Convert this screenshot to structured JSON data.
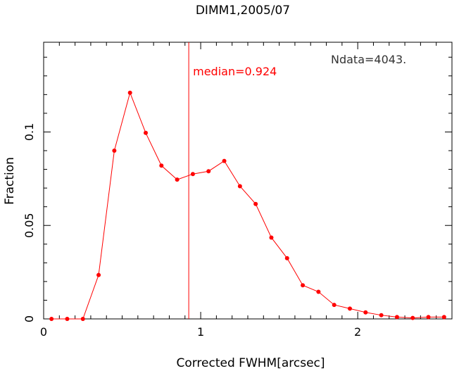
{
  "chart_data": {
    "type": "line",
    "title": "DIMM1,2005/07",
    "xlabel": "Corrected FWHM[arcsec]",
    "ylabel": "Fraction",
    "xlim": [
      0,
      2.6
    ],
    "ylim": [
      0,
      0.148
    ],
    "xticks": [
      {
        "value": 0,
        "label": "0"
      },
      {
        "value": 1,
        "label": "1"
      },
      {
        "value": 2,
        "label": "2"
      }
    ],
    "yticks": [
      {
        "value": 0,
        "label": "0"
      },
      {
        "value": 0.05,
        "label": "0.05"
      },
      {
        "value": 0.1,
        "label": "0.1"
      }
    ],
    "grid": false,
    "series": [
      {
        "color": "#ff0000",
        "x": [
          0.05,
          0.15,
          0.25,
          0.35,
          0.45,
          0.55,
          0.65,
          0.75,
          0.85,
          0.95,
          1.05,
          1.15,
          1.25,
          1.35,
          1.45,
          1.55,
          1.65,
          1.75,
          1.85,
          1.95,
          2.05,
          2.15,
          2.25,
          2.35,
          2.45,
          2.55
        ],
        "y": [
          0.0,
          0.0,
          0.0,
          0.0235,
          0.09,
          0.121,
          0.0995,
          0.082,
          0.0745,
          0.0775,
          0.079,
          0.0845,
          0.071,
          0.0615,
          0.0435,
          0.0325,
          0.018,
          0.0145,
          0.0075,
          0.0055,
          0.0035,
          0.002,
          0.001,
          0.0005,
          0.001,
          0.001
        ]
      }
    ],
    "median": {
      "value": 0.924,
      "label": "median=0.924",
      "color": "#ff0000"
    },
    "annotation": "Ndata=4043."
  }
}
